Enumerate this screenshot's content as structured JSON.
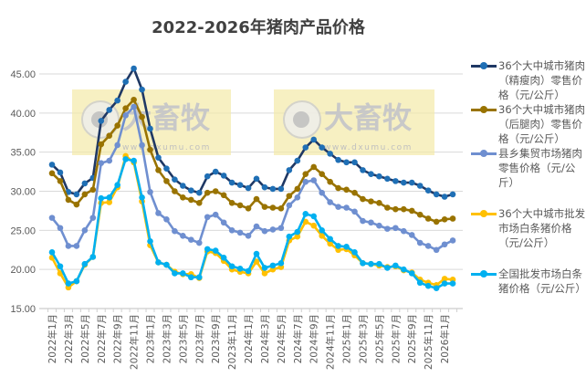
{
  "chart_data": {
    "type": "line",
    "title": "2022-2026年猪肉产品价格",
    "xlabel": "",
    "ylabel": "",
    "ylim": [
      15,
      45
    ],
    "yticks": [
      "15.00",
      "20.00",
      "25.00",
      "30.00",
      "35.00",
      "40.00",
      "45.00"
    ],
    "grid": true,
    "legend_position": "right",
    "x_tick_labels": [
      "2022年1月",
      "2022年3月",
      "2022年5月",
      "2022年7月",
      "2022年9月",
      "2022年11月",
      "2023年1月",
      "2023年3月",
      "2023年5月",
      "2023年7月",
      "2023年9月",
      "2023年11月",
      "2024年1月",
      "2024年3月",
      "2024年5月",
      "2024年7月",
      "2024年9月",
      "2024年11月",
      "2025年1月",
      "2025年3月",
      "2025年5月",
      "2025年7月",
      "2025年9月",
      "2025年11月",
      "2026年1月"
    ],
    "series": [
      {
        "name": "36个大中城市猪肉（精瘦肉）零售价格（元/公斤）",
        "color": "#1f3864",
        "marker": "#1f6fb5",
        "values": [
          33.4,
          32.4,
          29.9,
          29.6,
          31.0,
          31.7,
          39.0,
          40.4,
          41.6,
          44.0,
          45.7,
          43.0,
          38.0,
          34.3,
          32.9,
          31.5,
          30.7,
          30.1,
          29.8,
          31.9,
          32.5,
          32.0,
          31.1,
          30.8,
          30.4,
          31.6,
          30.5,
          30.3,
          30.3,
          32.7,
          33.9,
          35.6,
          36.6,
          35.6,
          34.8,
          34.0,
          33.7,
          33.7,
          32.7,
          32.2,
          31.9,
          31.6,
          31.3,
          31.1,
          31.1,
          30.7,
          30.1,
          29.6,
          29.3,
          29.6
        ]
      },
      {
        "name": "36个大中城市猪肉（后腿肉）零售价格（元/公斤）",
        "color": "#997300",
        "marker": "#997300",
        "values": [
          32.3,
          31.3,
          28.9,
          28.3,
          29.6,
          30.2,
          36.0,
          37.1,
          38.4,
          40.6,
          41.7,
          39.5,
          35.3,
          32.7,
          31.3,
          30.0,
          29.2,
          28.9,
          28.5,
          29.8,
          30.0,
          29.5,
          28.5,
          28.2,
          27.8,
          29.0,
          28.0,
          27.9,
          27.8,
          29.4,
          30.3,
          32.2,
          33.1,
          32.2,
          31.2,
          30.4,
          30.2,
          29.8,
          29.0,
          28.7,
          28.5,
          27.9,
          27.7,
          27.7,
          27.5,
          27.0,
          26.5,
          26.1,
          26.4,
          26.5
        ]
      },
      {
        "name": "县乡集贸市场猪肉零售价格（元/公斤）",
        "color": "#6f8fd0",
        "marker": "#6f8fd0",
        "values": [
          26.6,
          25.3,
          23.0,
          23.0,
          25.0,
          26.6,
          33.6,
          33.9,
          35.9,
          39.7,
          40.8,
          35.9,
          29.9,
          27.2,
          26.4,
          24.9,
          24.3,
          23.8,
          23.4,
          26.7,
          27.0,
          26.0,
          25.0,
          24.7,
          24.3,
          25.5,
          24.9,
          25.1,
          25.3,
          28.2,
          29.2,
          31.2,
          31.4,
          29.8,
          28.6,
          28.0,
          27.9,
          27.4,
          26.2,
          26.0,
          25.6,
          25.2,
          25.3,
          24.9,
          24.4,
          23.4,
          23.0,
          22.5,
          23.2,
          23.7
        ]
      },
      {
        "name": "36个大中城市批发市场白条猪价格（元/公斤）",
        "color": "#ffc000",
        "marker": "#ffc000",
        "values": [
          21.5,
          19.5,
          17.7,
          18.5,
          20.6,
          21.6,
          28.5,
          28.6,
          30.5,
          34.5,
          33.7,
          28.7,
          23.1,
          20.9,
          20.6,
          19.7,
          19.4,
          19.4,
          18.9,
          22.3,
          22.1,
          21.1,
          20.0,
          19.7,
          19.5,
          21.0,
          19.5,
          20.0,
          20.3,
          23.7,
          24.2,
          26.1,
          25.6,
          24.3,
          23.3,
          22.5,
          22.6,
          21.8,
          20.8,
          20.7,
          20.5,
          20.3,
          20.4,
          19.9,
          19.6,
          18.7,
          18.3,
          18.0,
          18.8,
          18.7
        ]
      },
      {
        "name": "全国批发市场白条猪价格（元/公斤）",
        "color": "#00b0f0",
        "marker": "#00b0f0",
        "values": [
          22.2,
          20.4,
          18.2,
          18.5,
          20.7,
          21.6,
          29.1,
          29.2,
          30.8,
          34.1,
          33.9,
          29.2,
          23.6,
          20.9,
          20.6,
          19.5,
          19.5,
          19.0,
          19.0,
          22.6,
          22.4,
          21.5,
          20.4,
          20.1,
          19.8,
          22.0,
          20.2,
          20.5,
          20.8,
          24.2,
          24.8,
          27.1,
          26.8,
          25.0,
          23.9,
          23.0,
          22.9,
          22.2,
          20.8,
          20.7,
          20.7,
          20.2,
          20.5,
          20.0,
          19.5,
          18.3,
          17.9,
          17.6,
          18.2,
          18.2
        ]
      }
    ]
  },
  "watermark": {
    "logo_text": "大畜牧",
    "url_text": "www.dxumu.com"
  }
}
